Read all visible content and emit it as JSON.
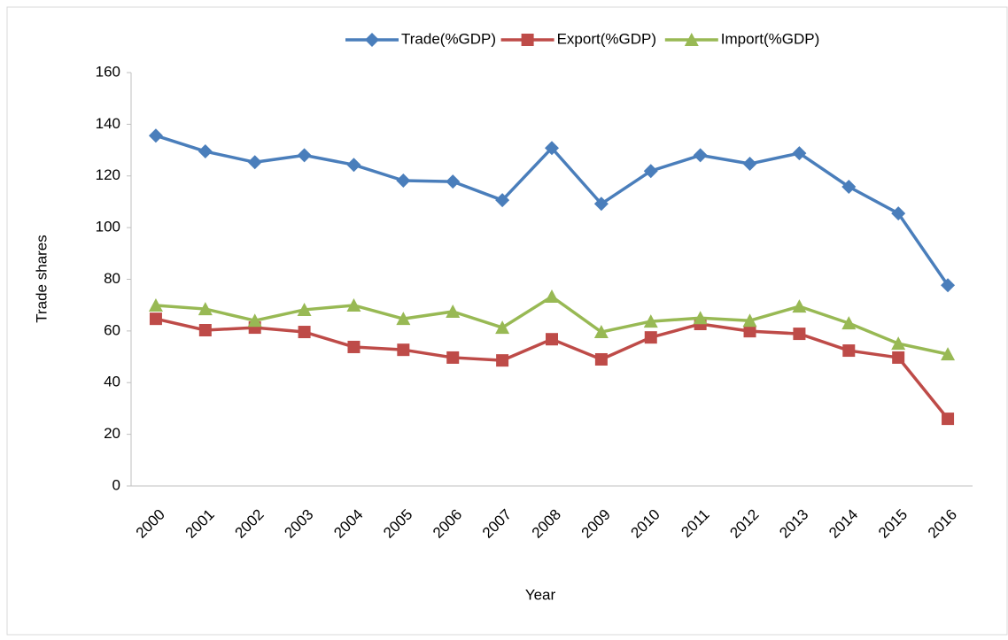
{
  "chart_data": {
    "type": "line",
    "x_label": "Year",
    "y_label": "Trade shares",
    "categories": [
      "2000",
      "2001",
      "2002",
      "2003",
      "2004",
      "2005",
      "2006",
      "2007",
      "2008",
      "2009",
      "2010",
      "2011",
      "2012",
      "2013",
      "2014",
      "2015",
      "2016"
    ],
    "series": [
      {
        "name": "Trade(%GDP)",
        "color": "#4a7ebb",
        "marker": "diamond",
        "values": [
          135.6,
          129.5,
          125.3,
          128,
          124.3,
          118.2,
          117.8,
          110.6,
          130.8,
          109.2,
          121.9,
          128,
          124.7,
          128.8,
          115.8,
          105.5,
          77.7
        ]
      },
      {
        "name": "Export(%GDP)",
        "color": "#be4b48",
        "marker": "square",
        "values": [
          64.7,
          60.3,
          61.3,
          59.6,
          53.8,
          52.7,
          49.7,
          48.6,
          56.8,
          49,
          57.5,
          62.7,
          59.9,
          58.9,
          52.4,
          49.7,
          26
        ]
      },
      {
        "name": "Import(%GDP)",
        "color": "#98b954",
        "marker": "triangle",
        "values": [
          69.9,
          68.5,
          64,
          68.2,
          69.9,
          64.7,
          67.5,
          61.3,
          73.3,
          59.6,
          63.7,
          65,
          64,
          69.5,
          63,
          55.1,
          51
        ]
      }
    ],
    "ylim": [
      0,
      160
    ],
    "yticks": [
      0,
      20,
      40,
      60,
      80,
      100,
      120,
      140,
      160
    ],
    "grid": false,
    "legend": "top"
  }
}
